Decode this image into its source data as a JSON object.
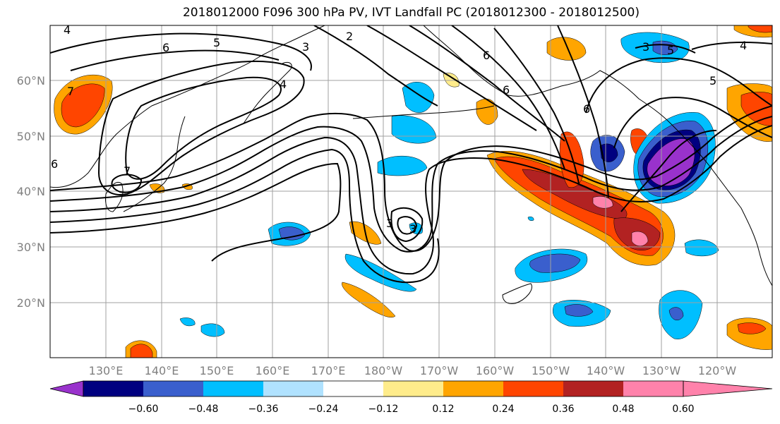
{
  "title": "2018012000 F096 300 hPa PV, IVT Landfall PC (2018012300 - 2018012500)",
  "lat_labels": [
    "60°N",
    "50°N",
    "40°N",
    "30°N",
    "20°N"
  ],
  "lon_labels": [
    "130°E",
    "140°E",
    "150°E",
    "160°E",
    "170°E",
    "180°W",
    "170°W",
    "160°W",
    "150°W",
    "140°W",
    "130°W",
    "120°W"
  ],
  "colorbar": {
    "colors": [
      "#9932cc",
      "#000080",
      "#3a5fcd",
      "#00bfff",
      "#b0e2ff",
      "#ffffff",
      "#ffec8b",
      "#ffa500",
      "#ff4500",
      "#b22222",
      "#ff82ab"
    ],
    "labels": [
      "−0.60",
      "−0.48",
      "−0.36",
      "−0.24",
      "−0.12",
      "0.12",
      "0.24",
      "0.36",
      "0.48",
      "0.60"
    ]
  },
  "contour_labels": [
    "4",
    "6",
    "5",
    "3",
    "2",
    "4",
    "7",
    "6",
    "7",
    "6",
    "3",
    "3",
    "5",
    "4",
    "5",
    "3",
    "6",
    "6"
  ],
  "chart_data": {
    "type": "map",
    "title": "2018012000 F096 300 hPa PV, IVT Landfall PC (2018012300 - 2018012500)",
    "fill_levels": [
      -0.6,
      -0.48,
      -0.36,
      -0.24,
      -0.12,
      0.12,
      0.24,
      0.36,
      0.48,
      0.6
    ],
    "contour_values": [
      2,
      3,
      4,
      5,
      6,
      7
    ],
    "lat_range": [
      10,
      70
    ],
    "lon_range": [
      120,
      250
    ]
  }
}
